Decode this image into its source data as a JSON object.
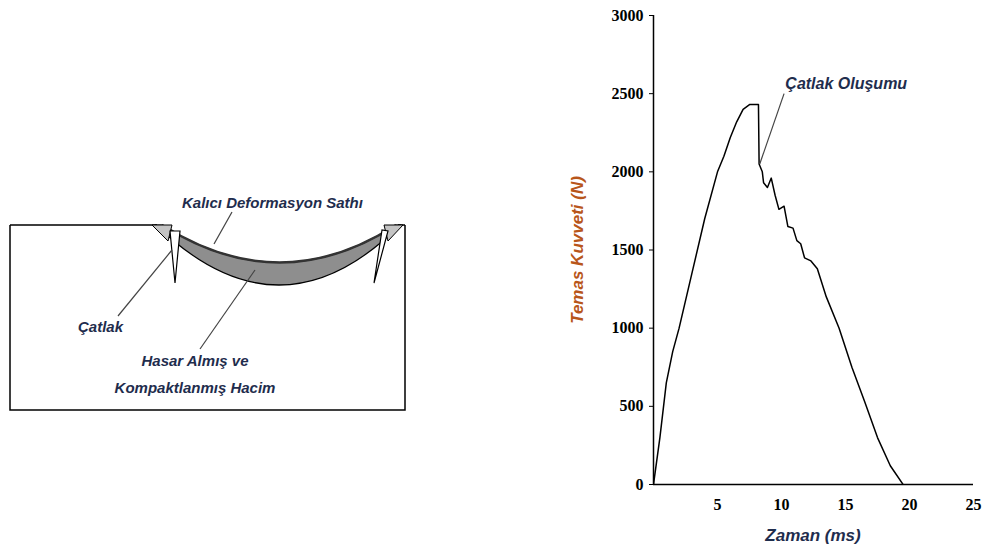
{
  "diagram": {
    "surface_label": "Kalıcı Deformasyon Sathı",
    "crack_label": "Çatlak",
    "volume_label": "Hasar Almış ve Kompaktlanmış Hacim"
  },
  "chart_data": {
    "type": "line",
    "x_label": "Zaman (ms)",
    "y_label": "Temas Kuvveti (N)",
    "x": [
      0,
      0.5,
      1,
      1.5,
      2,
      3,
      4,
      5,
      5.5,
      6,
      6.5,
      7,
      7.5,
      8.2,
      8.25,
      8.5,
      8.6,
      8.9,
      9.2,
      9.5,
      9.8,
      10.2,
      10.5,
      10.9,
      11.2,
      11.5,
      11.8,
      12.3,
      12.8,
      13.5,
      14.5,
      15.5,
      16.5,
      17.5,
      18.5,
      19.5
    ],
    "values": [
      0,
      300,
      650,
      850,
      1000,
      1350,
      1700,
      2000,
      2100,
      2220,
      2320,
      2400,
      2430,
      2430,
      2050,
      2000,
      1930,
      1900,
      1960,
      1850,
      1760,
      1780,
      1650,
      1640,
      1560,
      1540,
      1450,
      1430,
      1380,
      1200,
      1000,
      750,
      530,
      300,
      120,
      0
    ],
    "color": "#000000",
    "xlim": [
      0,
      25
    ],
    "xticks": [
      5,
      10,
      15,
      20,
      25
    ],
    "ylim": [
      0,
      3000
    ],
    "yticks": [
      0,
      500,
      1000,
      1500,
      2000,
      2500,
      3000
    ],
    "grid": false,
    "annotations": [
      {
        "text": "Çatlak Oluşumu",
        "x": 10.3,
        "y": 2560,
        "arrow_x": 8.3,
        "arrow_y": 2050
      }
    ]
  }
}
